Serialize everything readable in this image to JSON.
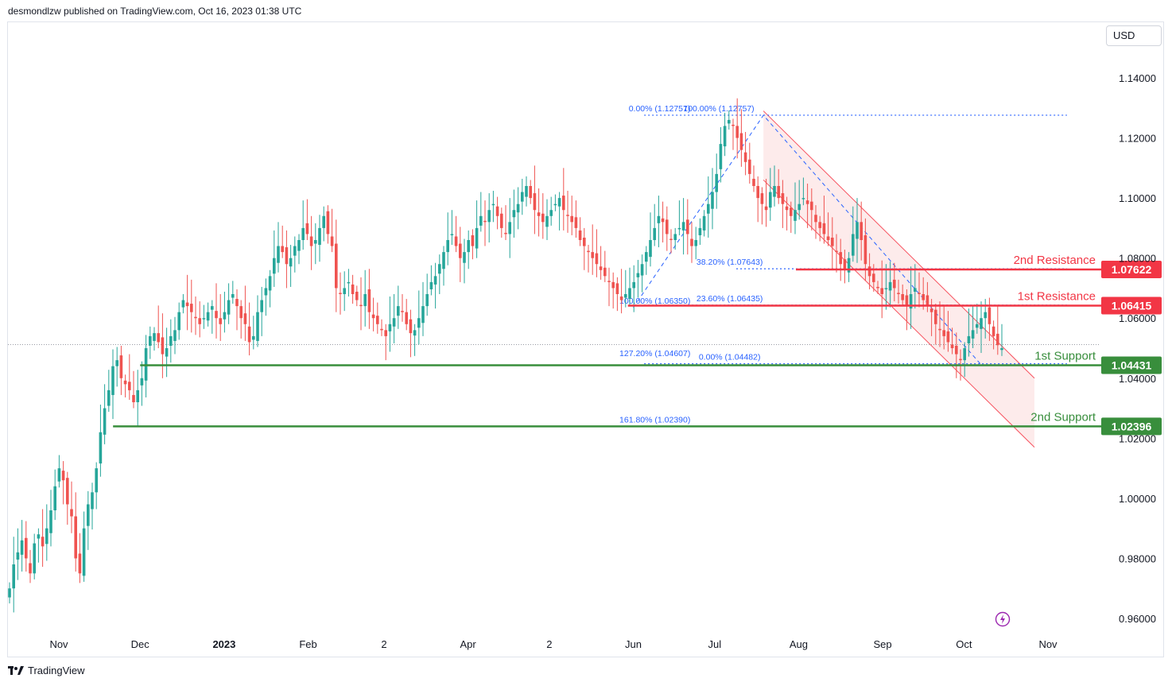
{
  "header": {
    "publish_text": "desmondlzw published on TradingView.com, Oct 16, 2023 01:38 UTC"
  },
  "currency": "USD",
  "footer": {
    "brand": "TradingView"
  },
  "colors": {
    "up": "#26a69a",
    "down": "#ef5350",
    "resistance": "#f23645",
    "support": "#388e3c",
    "fib": "#2962ff",
    "channel_fill": "#fce4e4"
  },
  "chart_data": {
    "type": "candlestick",
    "symbol_currency": "USD",
    "y_axis": {
      "range": [
        0.9505,
        1.1565
      ],
      "ticks": [
        "1.14000",
        "1.12000",
        "1.10000",
        "1.08000",
        "1.06000",
        "1.04000",
        "1.02000",
        "1.00000",
        "0.98000",
        "0.96000"
      ],
      "tick_values": [
        1.14,
        1.12,
        1.1,
        1.08,
        1.06,
        1.04,
        1.02,
        1.0,
        0.98,
        0.96
      ]
    },
    "x_axis": {
      "ticks": [
        {
          "label": "Nov",
          "day": 0
        },
        {
          "label": "Dec",
          "day": 30
        },
        {
          "label": "2023",
          "day": 61,
          "bold": true
        },
        {
          "label": "Feb",
          "day": 92
        },
        {
          "label": "2",
          "day": 120
        },
        {
          "label": "Apr",
          "day": 151
        },
        {
          "label": "2",
          "day": 181
        },
        {
          "label": "Jun",
          "day": 212
        },
        {
          "label": "Jul",
          "day": 242
        },
        {
          "label": "Aug",
          "day": 273
        },
        {
          "label": "Sep",
          "day": 304
        },
        {
          "label": "Oct",
          "day": 334
        },
        {
          "label": "Nov",
          "day": 365
        }
      ]
    },
    "closes": [
      0.97,
      0.978,
      0.982,
      0.986,
      0.98,
      0.975,
      0.985,
      0.988,
      0.984,
      0.99,
      0.996,
      1.004,
      1.01,
      1.006,
      0.998,
      0.994,
      0.98,
      0.975,
      0.99,
      0.998,
      1.002,
      1.01,
      1.022,
      1.03,
      1.036,
      1.044,
      1.046,
      1.04,
      1.038,
      1.036,
      1.032,
      1.036,
      1.04,
      1.05,
      1.054,
      1.055,
      1.052,
      1.048,
      1.05,
      1.054,
      1.056,
      1.062,
      1.066,
      1.064,
      1.062,
      1.06,
      1.058,
      1.06,
      1.062,
      1.064,
      1.06,
      1.058,
      1.062,
      1.066,
      1.068,
      1.064,
      1.06,
      1.058,
      1.052,
      1.054,
      1.062,
      1.066,
      1.07,
      1.074,
      1.08,
      1.084,
      1.082,
      1.078,
      1.08,
      1.084,
      1.086,
      1.09,
      1.088,
      1.084,
      1.086,
      1.09,
      1.094,
      1.088,
      1.084,
      1.07,
      1.068,
      1.07,
      1.072,
      1.068,
      1.066,
      1.064,
      1.068,
      1.062,
      1.06,
      1.058,
      1.056,
      1.054,
      1.058,
      1.06,
      1.064,
      1.062,
      1.058,
      1.055,
      1.056,
      1.06,
      1.064,
      1.068,
      1.072,
      1.074,
      1.078,
      1.082,
      1.086,
      1.088,
      1.084,
      1.08,
      1.082,
      1.086,
      1.084,
      1.09,
      1.094,
      1.092,
      1.096,
      1.098,
      1.094,
      1.09,
      1.088,
      1.092,
      1.096,
      1.098,
      1.102,
      1.104,
      1.1,
      1.096,
      1.094,
      1.092,
      1.094,
      1.096,
      1.098,
      1.1,
      1.096,
      1.094,
      1.092,
      1.09,
      1.086,
      1.084,
      1.082,
      1.08,
      1.078,
      1.076,
      1.074,
      1.072,
      1.07,
      1.068,
      1.066,
      1.068,
      1.07,
      1.072,
      1.075,
      1.078,
      1.082,
      1.086,
      1.09,
      1.094,
      1.092,
      1.088,
      1.086,
      1.088,
      1.09,
      1.092,
      1.088,
      1.084,
      1.086,
      1.09,
      1.094,
      1.098,
      1.102,
      1.108,
      1.118,
      1.124,
      1.126,
      1.124,
      1.12,
      1.116,
      1.112,
      1.108,
      1.104,
      1.1,
      1.098,
      1.096,
      1.102,
      1.104,
      1.1,
      1.098,
      1.096,
      1.094,
      1.096,
      1.098,
      1.1,
      1.098,
      1.096,
      1.092,
      1.09,
      1.088,
      1.086,
      1.084,
      1.082,
      1.078,
      1.076,
      1.08,
      1.088,
      1.092,
      1.086,
      1.078,
      1.074,
      1.072,
      1.07,
      1.068,
      1.07,
      1.072,
      1.07,
      1.068,
      1.066,
      1.064,
      1.068,
      1.07,
      1.068,
      1.066,
      1.064,
      1.062,
      1.058,
      1.056,
      1.054,
      1.052,
      1.05,
      1.048,
      1.046,
      1.05,
      1.054,
      1.056,
      1.058,
      1.06,
      1.062,
      1.058,
      1.054,
      1.051,
      1.05
    ],
    "last_price_line": 1.0512,
    "levels": [
      {
        "label": "2nd Resistance",
        "value": 1.07622,
        "display": "1.07622",
        "kind": "resistance",
        "start_day": 272
      },
      {
        "label": "1st Resistance",
        "value": 1.06415,
        "display": "1.06415",
        "kind": "resistance",
        "start_day": 210
      },
      {
        "label": "1st Support",
        "value": 1.04431,
        "display": "1.04431",
        "kind": "support",
        "start_day": 30
      },
      {
        "label": "2nd Support",
        "value": 1.02396,
        "display": "1.02396",
        "kind": "support",
        "start_day": 20
      }
    ],
    "fib_labels": [
      {
        "text": "100.00% (1.12757)",
        "value": 1.12757,
        "day": 223,
        "side": "right"
      },
      {
        "text": "0.00% (1.12757)",
        "value": 1.12757,
        "day": 214,
        "side": "left"
      },
      {
        "text": "38.20% (1.07643)",
        "value": 1.07643,
        "day": 227,
        "side": "right"
      },
      {
        "text": "23.60% (1.06435)",
        "value": 1.06435,
        "day": 227,
        "side": "right"
      },
      {
        "text": "100.00% (1.06350)",
        "value": 1.0635,
        "day": 214,
        "side": "left"
      },
      {
        "text": "0.00% (1.04482)",
        "value": 1.04482,
        "day": 227,
        "side": "right"
      },
      {
        "text": "127.20% (1.04607)",
        "value": 1.04607,
        "day": 214,
        "side": "left"
      },
      {
        "text": "161.80% (1.02390)",
        "value": 1.0239,
        "day": 214,
        "side": "left"
      }
    ],
    "fib_lines": [
      {
        "value": 1.12757,
        "from_day": 216,
        "to_day": 372
      },
      {
        "value": 1.07643,
        "from_day": 250,
        "to_day": 372
      },
      {
        "value": 1.06435,
        "from_day": 216,
        "to_day": 372
      },
      {
        "value": 1.04482,
        "from_day": 216,
        "to_day": 372
      }
    ],
    "channel": {
      "upper": [
        {
          "day": 260,
          "value": 1.129
        },
        {
          "day": 360,
          "value": 1.04
        }
      ],
      "lower": [
        {
          "day": 260,
          "value": 1.106
        },
        {
          "day": 360,
          "value": 1.017
        }
      ]
    }
  }
}
